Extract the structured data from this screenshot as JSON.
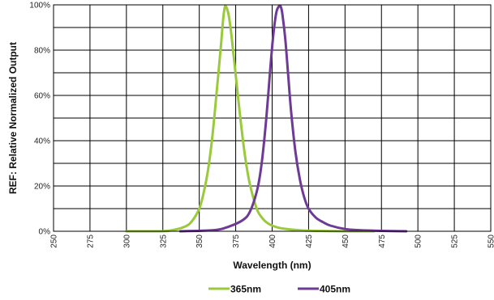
{
  "chart_data": {
    "type": "line",
    "title": "",
    "xlabel": "Wavelength (nm)",
    "ylabel": "REF: Relative Normalized Output",
    "xlim": [
      250,
      550
    ],
    "ylim": [
      0,
      100
    ],
    "x_ticks": [
      250,
      275,
      300,
      325,
      350,
      375,
      400,
      425,
      450,
      475,
      500,
      525,
      550
    ],
    "x_tick_labels": [
      "250",
      "275",
      "300",
      "325",
      "350",
      "375",
      "400",
      "425",
      "450",
      "475",
      "500",
      "525",
      "550"
    ],
    "y_ticks": [
      0,
      20,
      40,
      60,
      80,
      100
    ],
    "y_tick_labels": [
      "0%",
      "20%",
      "40%",
      "60%",
      "80%",
      "100%"
    ],
    "grid": true,
    "legend_position": "bottom-center",
    "series": [
      {
        "name": "365nm",
        "color": "#9ACA3C",
        "x": [
          300,
          320,
          330,
          340,
          345,
          350,
          353,
          356,
          359,
          362,
          365,
          366,
          367,
          368,
          370,
          372,
          375,
          378,
          381,
          384,
          387,
          390,
          393,
          396,
          400,
          405,
          410,
          420,
          430,
          450,
          470
        ],
        "y": [
          0,
          0,
          0.3,
          2,
          4.5,
          10,
          17,
          27,
          42,
          62,
          83,
          91,
          97,
          99.5,
          96,
          87,
          69,
          51,
          35,
          23,
          15,
          9,
          6,
          4,
          2.5,
          1.5,
          1,
          0.4,
          0.2,
          0,
          0
        ]
      },
      {
        "name": "405nm",
        "color": "#6E3A96",
        "x": [
          337,
          360,
          370,
          380,
          385,
          390,
          393,
          396,
          399,
          401,
          403,
          405,
          406,
          407,
          409,
          411,
          413,
          416,
          419,
          422,
          425,
          430,
          435,
          440,
          450,
          460,
          475,
          492
        ],
        "y": [
          0,
          0.5,
          2,
          5,
          9,
          19,
          31,
          50,
          74,
          88,
          97,
          99.5,
          99,
          96,
          85,
          69,
          53,
          35,
          23,
          15,
          10,
          6,
          4,
          2.5,
          1,
          0.5,
          0.2,
          0
        ]
      }
    ]
  }
}
